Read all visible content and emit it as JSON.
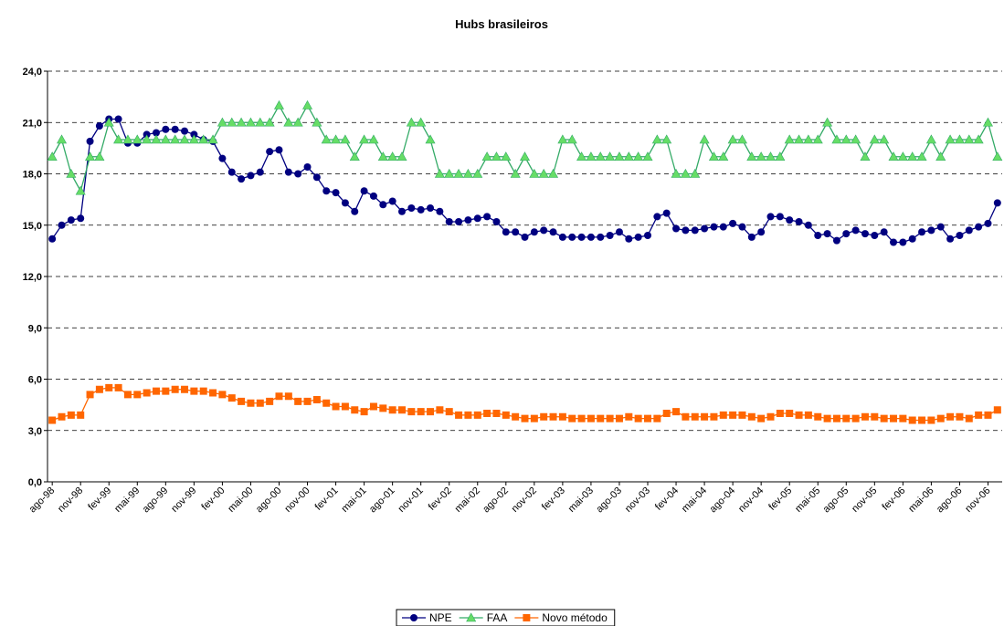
{
  "chart_data": {
    "type": "line",
    "title": "Hubs brasileiros",
    "categories": [
      "ago-98",
      null,
      null,
      "nov-98",
      null,
      null,
      "fev-99",
      null,
      null,
      "mai-99",
      null,
      null,
      "ago-99",
      null,
      null,
      "nov-99",
      null,
      null,
      "fev-00",
      null,
      null,
      "mai-00",
      null,
      null,
      "ago-00",
      null,
      null,
      "nov-00",
      null,
      null,
      "fev-01",
      null,
      null,
      "mai-01",
      null,
      null,
      "ago-01",
      null,
      null,
      "nov-01",
      null,
      null,
      "fev-02",
      null,
      null,
      "mai-02",
      null,
      null,
      "ago-02",
      null,
      null,
      "nov-02",
      null,
      null,
      "fev-03",
      null,
      null,
      "mai-03",
      null,
      null,
      "ago-03",
      null,
      null,
      "nov-03",
      null,
      null,
      "fev-04",
      null,
      null,
      "mai-04",
      null,
      null,
      "ago-04",
      null,
      null,
      "nov-04",
      null,
      null,
      "fev-05",
      null,
      null,
      "mai-05",
      null,
      null,
      "ago-05",
      null,
      null,
      "nov-05",
      null,
      null,
      "fev-06",
      null,
      null,
      "mai-06",
      null,
      null,
      "ago-06",
      null,
      null,
      "nov-06",
      null
    ],
    "series": [
      {
        "name": "NPE",
        "color": "#000080",
        "marker": "circle",
        "values": [
          14.2,
          15.0,
          15.3,
          15.4,
          19.9,
          20.8,
          21.2,
          21.2,
          19.8,
          19.8,
          20.3,
          20.4,
          20.6,
          20.6,
          20.5,
          20.3,
          20.0,
          19.9,
          18.9,
          18.1,
          17.7,
          17.9,
          18.1,
          19.3,
          19.4,
          18.1,
          18.0,
          18.4,
          17.8,
          17.0,
          16.9,
          16.3,
          15.8,
          17.0,
          16.7,
          16.2,
          16.4,
          15.8,
          16.0,
          15.9,
          16.0,
          15.8,
          15.2,
          15.2,
          15.3,
          15.4,
          15.5,
          15.2,
          14.6,
          14.6,
          14.3,
          14.6,
          14.7,
          14.6,
          14.3,
          14.3,
          14.3,
          14.3,
          14.3,
          14.4,
          14.6,
          14.2,
          14.3,
          14.4,
          15.5,
          15.7,
          14.8,
          14.7,
          14.7,
          14.8,
          14.9,
          14.9,
          15.1,
          14.9,
          14.3,
          14.6,
          15.5,
          15.5,
          15.3,
          15.2,
          15.0,
          14.4,
          14.5,
          14.1,
          14.5,
          14.7,
          14.5,
          14.4,
          14.6,
          14.0,
          14.0,
          14.2,
          14.6,
          14.7,
          14.9,
          14.2,
          14.4,
          14.7,
          14.9,
          15.1,
          16.3
        ]
      },
      {
        "name": "FAA",
        "color": "#33aa66",
        "marker": "triangle",
        "marker_color": "#66dd66",
        "values": [
          19,
          20,
          18,
          17,
          19,
          19,
          21,
          20,
          20,
          20,
          20,
          20,
          20,
          20,
          20,
          20,
          20,
          20,
          21,
          21,
          21,
          21,
          21,
          21,
          22,
          21,
          21,
          22,
          21,
          20,
          20,
          20,
          19,
          20,
          20,
          19,
          19,
          19,
          21,
          21,
          20,
          18,
          18,
          18,
          18,
          18,
          19,
          19,
          19,
          18,
          19,
          18,
          18,
          18,
          20,
          20,
          19,
          19,
          19,
          19,
          19,
          19,
          19,
          19,
          20,
          20,
          18,
          18,
          18,
          20,
          19,
          19,
          20,
          20,
          19,
          19,
          19,
          19,
          20,
          20,
          20,
          20,
          21,
          20,
          20,
          20,
          19,
          20,
          20,
          19,
          19,
          19,
          19,
          20,
          19,
          20,
          20,
          20,
          20,
          21,
          19
        ]
      },
      {
        "name": "Novo método",
        "color": "#ff6600",
        "marker": "square",
        "values": [
          3.6,
          3.8,
          3.9,
          3.9,
          5.1,
          5.4,
          5.5,
          5.5,
          5.1,
          5.1,
          5.2,
          5.3,
          5.3,
          5.4,
          5.4,
          5.3,
          5.3,
          5.2,
          5.1,
          4.9,
          4.7,
          4.6,
          4.6,
          4.7,
          5.0,
          5.0,
          4.7,
          4.7,
          4.8,
          4.6,
          4.4,
          4.4,
          4.2,
          4.1,
          4.4,
          4.3,
          4.2,
          4.2,
          4.1,
          4.1,
          4.1,
          4.2,
          4.1,
          3.9,
          3.9,
          3.9,
          4.0,
          4.0,
          3.9,
          3.8,
          3.7,
          3.7,
          3.8,
          3.8,
          3.8,
          3.7,
          3.7,
          3.7,
          3.7,
          3.7,
          3.7,
          3.8,
          3.7,
          3.7,
          3.7,
          4.0,
          4.1,
          3.8,
          3.8,
          3.8,
          3.8,
          3.9,
          3.9,
          3.9,
          3.8,
          3.7,
          3.8,
          4.0,
          4.0,
          3.9,
          3.9,
          3.8,
          3.7,
          3.7,
          3.7,
          3.7,
          3.8,
          3.8,
          3.7,
          3.7,
          3.7,
          3.6,
          3.6,
          3.6,
          3.7,
          3.8,
          3.8,
          3.7,
          3.9,
          3.9,
          4.2
        ]
      }
    ],
    "ylim": [
      0,
      24
    ],
    "yticks": [
      {
        "value": 0,
        "label": "0,0"
      },
      {
        "value": 3,
        "label": "3,0"
      },
      {
        "value": 6,
        "label": "6,0"
      },
      {
        "value": 9,
        "label": "9,0"
      },
      {
        "value": 12,
        "label": "12,0"
      },
      {
        "value": 15,
        "label": "15,0"
      },
      {
        "value": 18,
        "label": "18,0"
      },
      {
        "value": 21,
        "label": "21,0"
      },
      {
        "value": 24,
        "label": "24,0"
      }
    ],
    "grid": true,
    "legend": "bottom"
  }
}
